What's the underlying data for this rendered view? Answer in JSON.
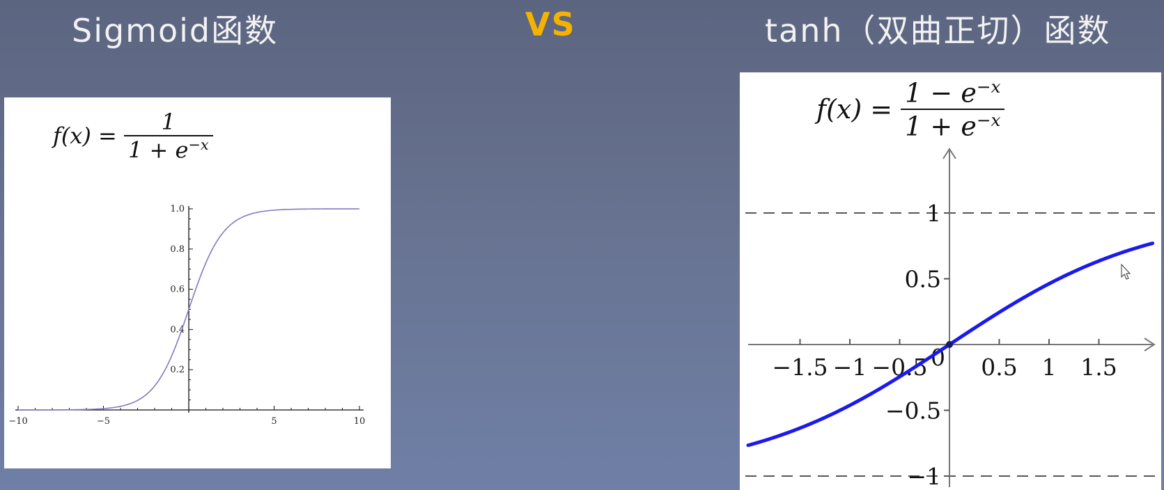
{
  "header": {
    "left_title": "Sigmoid函数",
    "vs_label": "VS",
    "right_title": "tanh（双曲正切）函数"
  },
  "sigmoid_panel": {
    "formula": {
      "lhs": "f(x) =",
      "numerator": "1",
      "denominator": "1 + e^{−x}"
    }
  },
  "tanh_panel": {
    "formula": {
      "lhs": "f(x) =",
      "numerator": "1 − e^{−x}",
      "denominator": "1 + e^{−x}"
    }
  },
  "chart_data": [
    {
      "type": "line",
      "xlim": [
        -10,
        10
      ],
      "ylim": [
        0,
        1
      ],
      "x_ticks": [
        -10,
        -5,
        5,
        10
      ],
      "x_tick_labels": [
        "−10",
        "−5",
        "5",
        "10"
      ],
      "y_ticks": [
        0.2,
        0.4,
        0.6,
        0.8,
        1.0
      ],
      "y_tick_labels": [
        "0.2",
        "0.4",
        "0.6",
        "0.8",
        "1.0"
      ],
      "grid": false,
      "series": [
        {
          "color": "#8478c0",
          "x": [
            -10,
            -8,
            -6,
            -5,
            -4,
            -3,
            -2,
            -1,
            0,
            1,
            2,
            3,
            4,
            5,
            6,
            8,
            10
          ],
          "y": [
            5e-05,
            0.0003,
            0.0025,
            0.0067,
            0.018,
            0.047,
            0.119,
            0.269,
            0.5,
            0.731,
            0.881,
            0.953,
            0.982,
            0.993,
            0.9975,
            0.9997,
            0.99995
          ]
        }
      ]
    },
    {
      "type": "line",
      "xlim": [
        -2,
        2
      ],
      "ylim": [
        -1,
        1
      ],
      "x_tick_labels": [
        "−1.5",
        "−1",
        "−0.5",
        "0",
        "0.5",
        "1",
        "1.5"
      ],
      "y_tick_labels": [
        "1",
        "0.5",
        "−0.5",
        "−1"
      ],
      "asymptotes": [
        1,
        -1
      ],
      "grid": false,
      "series": [
        {
          "color": "#1a1aee",
          "x": [
            -2,
            -1.8,
            -1.6,
            -1.4,
            -1.2,
            -1,
            -0.8,
            -0.6,
            -0.4,
            -0.2,
            0,
            0.2,
            0.4,
            0.6,
            0.8,
            1,
            1.2,
            1.4,
            1.6,
            1.8,
            2
          ],
          "y": [
            -0.7616,
            -0.7163,
            -0.664,
            -0.6044,
            -0.537,
            -0.4621,
            -0.3799,
            -0.2913,
            -0.1974,
            -0.0997,
            0,
            0.0997,
            0.1974,
            0.2913,
            0.3799,
            0.4621,
            0.537,
            0.6044,
            0.664,
            0.7163,
            0.7616
          ]
        }
      ]
    }
  ]
}
